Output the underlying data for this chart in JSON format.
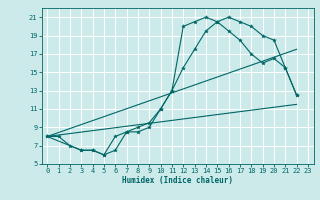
{
  "xlabel": "Humidex (Indice chaleur)",
  "bg_color": "#cceaea",
  "grid_color": "#ffffff",
  "line_color": "#006666",
  "xlim": [
    -0.5,
    23.5
  ],
  "ylim": [
    5,
    22
  ],
  "xticks": [
    0,
    1,
    2,
    3,
    4,
    5,
    6,
    7,
    8,
    9,
    10,
    11,
    12,
    13,
    14,
    15,
    16,
    17,
    18,
    19,
    20,
    21,
    22,
    23
  ],
  "yticks": [
    5,
    7,
    9,
    11,
    13,
    15,
    17,
    19,
    21
  ],
  "series1_x": [
    0,
    1,
    2,
    3,
    4,
    5,
    6,
    7,
    8,
    9,
    10,
    11,
    12,
    13,
    14,
    15,
    16,
    17,
    18,
    19,
    20,
    21,
    22
  ],
  "series1_y": [
    8,
    8,
    7,
    6.5,
    6.5,
    6,
    6.5,
    8.5,
    9,
    9.5,
    11,
    13,
    15.5,
    17.5,
    19.5,
    20.5,
    21,
    20.5,
    20,
    19,
    18.5,
    15.5,
    12.5
  ],
  "series2_x": [
    0,
    3,
    4,
    5,
    6,
    7,
    8,
    9,
    10,
    11,
    12,
    13,
    14,
    15,
    16,
    17,
    18,
    19,
    20,
    21,
    22
  ],
  "series2_y": [
    8,
    6.5,
    6.5,
    6,
    8,
    8.5,
    8.5,
    9,
    11,
    13,
    20,
    20.5,
    21,
    20.5,
    19.5,
    18.5,
    17,
    16,
    16.5,
    15.5,
    12.5
  ],
  "series3_x": [
    0,
    22
  ],
  "series3_y": [
    8,
    11.5
  ],
  "series4_x": [
    0,
    22
  ],
  "series4_y": [
    8,
    17.5
  ]
}
